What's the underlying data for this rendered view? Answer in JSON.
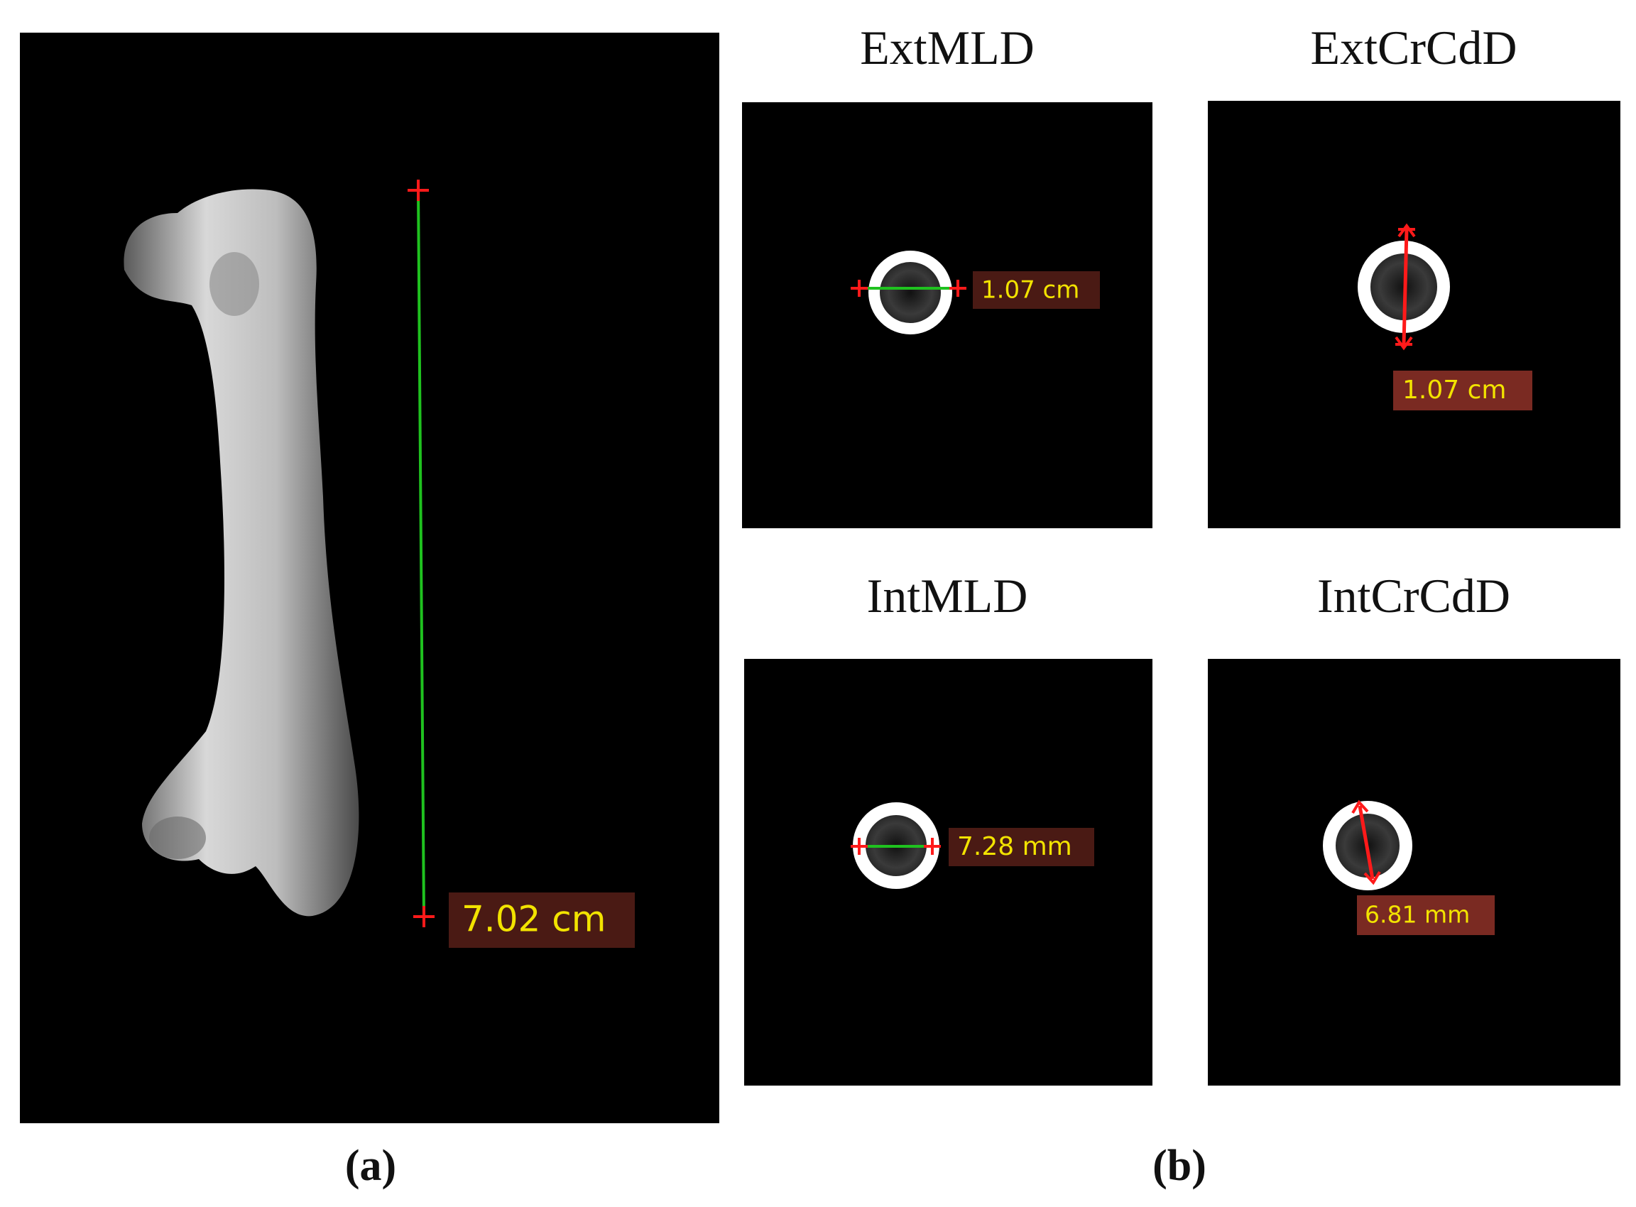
{
  "panel_a": {
    "measurement": "7.02 cm",
    "caption": "(a)"
  },
  "panel_b": {
    "views": [
      {
        "title": "ExtMLD",
        "measurement": "1.07 cm"
      },
      {
        "title": "ExtCrCdD",
        "measurement": "1.07 cm"
      },
      {
        "title": "IntMLD",
        "measurement": "7.28 mm"
      },
      {
        "title": "IntCrCdD",
        "measurement": "6.81 mm"
      }
    ],
    "caption": "(b)"
  }
}
